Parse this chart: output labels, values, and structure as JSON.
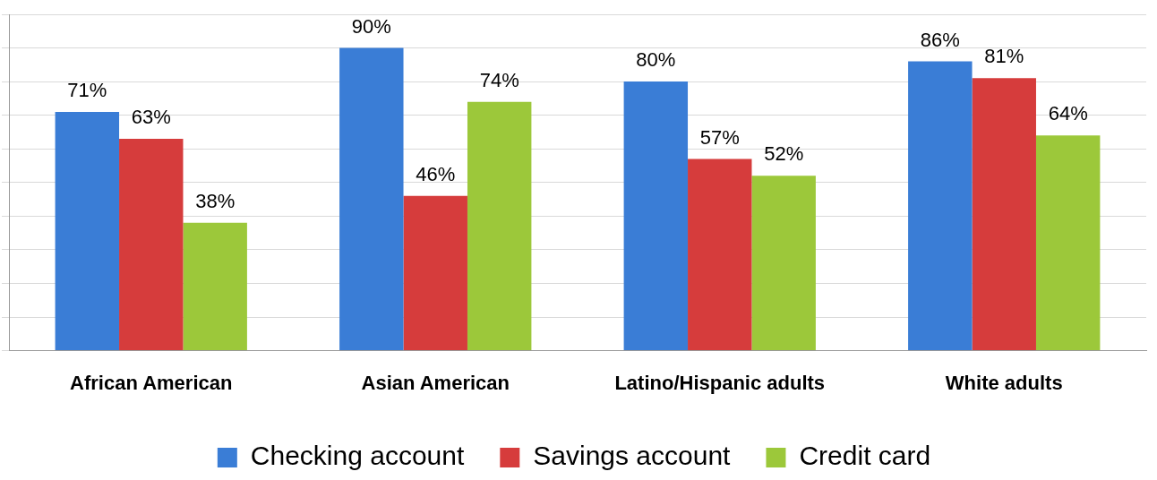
{
  "chart_data": {
    "type": "bar",
    "categories": [
      "African American",
      "Asian American",
      "Latino/Hispanic adults",
      "White adults"
    ],
    "series": [
      {
        "name": "Checking account",
        "color": "#3a7dd6",
        "values": [
          71,
          90,
          80,
          86
        ],
        "value_labels": [
          "71%",
          "90%",
          "80%",
          "86%"
        ]
      },
      {
        "name": "Savings account",
        "color": "#d63c3c",
        "values": [
          63,
          46,
          57,
          81
        ],
        "value_labels": [
          "63%",
          "46%",
          "57%",
          "81%"
        ]
      },
      {
        "name": "Credit card",
        "color": "#9cc83a",
        "values": [
          38,
          74,
          52,
          64
        ],
        "value_labels": [
          "38%",
          "74%",
          "52%",
          "64%"
        ]
      }
    ],
    "ylim": [
      0,
      100
    ],
    "yticks": [
      {
        "value": 0,
        "label": null
      },
      {
        "value": 10,
        "label": null
      },
      {
        "value": 20,
        "label": null
      },
      {
        "value": 30,
        "label": null
      },
      {
        "value": 40,
        "label": null
      },
      {
        "value": 50,
        "label": null
      },
      {
        "value": 60,
        "label": null
      },
      {
        "value": 70,
        "label": null
      },
      {
        "value": 80,
        "label": null
      },
      {
        "value": 90,
        "label": null
      },
      {
        "value": 100,
        "label": null
      }
    ],
    "tick_labels": "x",
    "grid": "y",
    "legend": "bottom"
  }
}
